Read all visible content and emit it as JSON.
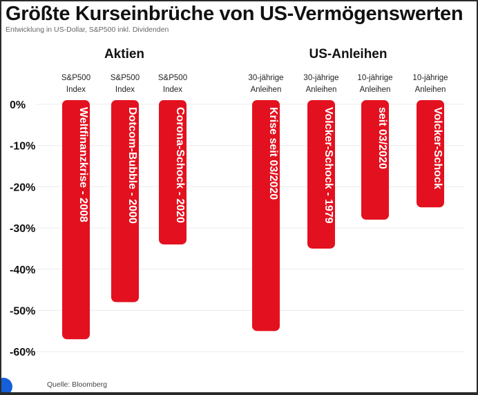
{
  "title": "Größte Kurseinbrüche von US-Vermögenswerten",
  "subtitle": "Entwicklung in US-Dollar, S&P500 inkl. Dividenden",
  "source": "Quelle: Bloomberg",
  "chart_data": {
    "type": "bar",
    "groups": [
      "Aktien",
      "US-Anleihen"
    ],
    "categories": [
      {
        "group": 0,
        "header": [
          "S&P500",
          "Index"
        ],
        "label": "Weltfinanzkrise - 2008"
      },
      {
        "group": 0,
        "header": [
          "S&P500",
          "Index"
        ],
        "label": "Dotcom-Bubble - 2000"
      },
      {
        "group": 0,
        "header": [
          "S&P500",
          "Index"
        ],
        "label": "Corona-Schock - 2020"
      },
      {
        "group": 1,
        "header": [
          "30-jährige",
          "Anleihen"
        ],
        "label": "Krise seit 03/2020"
      },
      {
        "group": 1,
        "header": [
          "30-jährige",
          "Anleihen"
        ],
        "label": "Volcker-Schock - 1979"
      },
      {
        "group": 1,
        "header": [
          "10-jährige",
          "Anleihen"
        ],
        "label": "seit 03/2020"
      },
      {
        "group": 1,
        "header": [
          "10-jährige",
          "Anleihen"
        ],
        "label": "Volcker-Schock"
      }
    ],
    "values": [
      -57,
      -48,
      -34,
      -55,
      -35,
      -28,
      -25
    ],
    "unit": "%",
    "ylim": [
      -60,
      0
    ],
    "yticks": [
      0,
      -10,
      -20,
      -30,
      -40,
      -50,
      -60
    ],
    "ytick_labels": [
      "0%",
      "-10%",
      "-20%",
      "-30%",
      "-40%",
      "-50%",
      "-60%"
    ],
    "grid": true,
    "bar_color": "#e3111f"
  }
}
